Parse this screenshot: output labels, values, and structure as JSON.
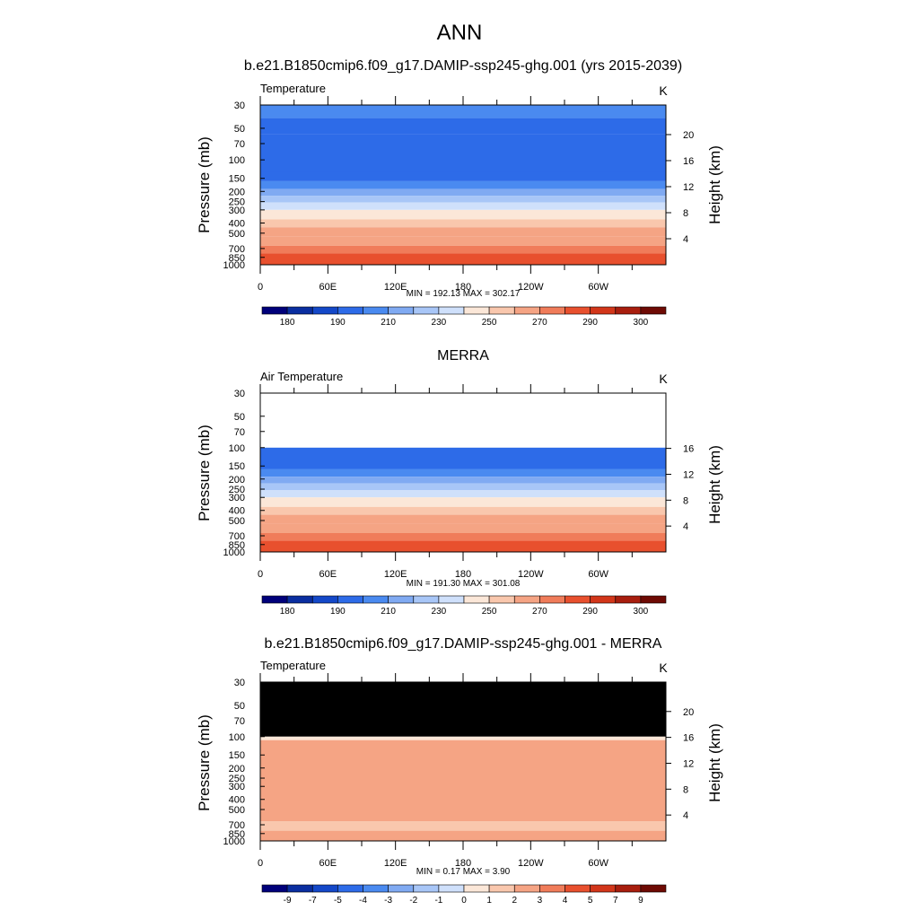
{
  "page_title": "ANN",
  "chart_data": [
    {
      "type": "heatmap",
      "title": "b.e21.B1850cmip6.f09_g17.DAMIP-ssp245-ghg.001 (yrs 2015-2039)",
      "left_label": "Temperature",
      "units": "K",
      "ylabel": "Pressure (mb)",
      "y2label": "Height (km)",
      "pressure_ticks": [
        "30",
        "50",
        "70",
        "100",
        "150",
        "200",
        "250",
        "300",
        "400",
        "500",
        "700",
        "850",
        "1000"
      ],
      "height_ticks": [
        "20",
        "16",
        "12",
        "8",
        "4"
      ],
      "x_ticks": [
        "0",
        "60E",
        "120E",
        "180",
        "120W",
        "60W"
      ],
      "minmax": "MIN = 192.13  MAX = 302.17",
      "colorbar_labels": [
        "180",
        "190",
        "210",
        "230",
        "250",
        "270",
        "290",
        "300"
      ],
      "bands": [
        {
          "top": 30,
          "bottom": 40,
          "value": 205
        },
        {
          "top": 40,
          "bottom": 57,
          "value": 200
        },
        {
          "top": 57,
          "bottom": 130,
          "value": 195
        },
        {
          "top": 130,
          "bottom": 160,
          "value": 200
        },
        {
          "top": 160,
          "bottom": 190,
          "value": 205
        },
        {
          "top": 190,
          "bottom": 220,
          "value": 215
        },
        {
          "top": 220,
          "bottom": 255,
          "value": 225
        },
        {
          "top": 255,
          "bottom": 300,
          "value": 235
        },
        {
          "top": 300,
          "bottom": 370,
          "value": 245
        },
        {
          "top": 370,
          "bottom": 440,
          "value": 255
        },
        {
          "top": 440,
          "bottom": 540,
          "value": 262
        },
        {
          "top": 540,
          "bottom": 660,
          "value": 268
        },
        {
          "top": 660,
          "bottom": 780,
          "value": 275
        },
        {
          "top": 780,
          "bottom": 880,
          "value": 282
        },
        {
          "top": 880,
          "bottom": 1000,
          "value": 288
        }
      ]
    },
    {
      "type": "heatmap",
      "title": "MERRA",
      "left_label": "Air Temperature",
      "units": "K",
      "ylabel": "Pressure (mb)",
      "y2label": "Height (km)",
      "pressure_ticks": [
        "30",
        "50",
        "70",
        "100",
        "150",
        "200",
        "250",
        "300",
        "400",
        "500",
        "700",
        "850",
        "1000"
      ],
      "height_ticks": [
        "16",
        "12",
        "8",
        "4"
      ],
      "x_ticks": [
        "0",
        "60E",
        "120E",
        "180",
        "120W",
        "60W"
      ],
      "minmax": "MIN = 191.30  MAX = 301.08",
      "colorbar_labels": [
        "180",
        "190",
        "210",
        "230",
        "250",
        "270",
        "290",
        "300"
      ],
      "bands": [
        {
          "top": 100,
          "bottom": 130,
          "value": 195
        },
        {
          "top": 130,
          "bottom": 160,
          "value": 200
        },
        {
          "top": 160,
          "bottom": 190,
          "value": 205
        },
        {
          "top": 190,
          "bottom": 220,
          "value": 215
        },
        {
          "top": 220,
          "bottom": 255,
          "value": 225
        },
        {
          "top": 255,
          "bottom": 300,
          "value": 235
        },
        {
          "top": 300,
          "bottom": 370,
          "value": 245
        },
        {
          "top": 370,
          "bottom": 440,
          "value": 255
        },
        {
          "top": 440,
          "bottom": 540,
          "value": 262
        },
        {
          "top": 540,
          "bottom": 660,
          "value": 268
        },
        {
          "top": 660,
          "bottom": 780,
          "value": 275
        },
        {
          "top": 780,
          "bottom": 880,
          "value": 282
        },
        {
          "top": 880,
          "bottom": 1000,
          "value": 288
        }
      ]
    },
    {
      "type": "heatmap",
      "title": "b.e21.B1850cmip6.f09_g17.DAMIP-ssp245-ghg.001 - MERRA",
      "left_label": "Temperature",
      "units": "K",
      "ylabel": "Pressure (mb)",
      "y2label": "Height (km)",
      "pressure_ticks": [
        "30",
        "50",
        "70",
        "100",
        "150",
        "200",
        "250",
        "300",
        "400",
        "500",
        "700",
        "850",
        "1000"
      ],
      "height_ticks": [
        "20",
        "16",
        "12",
        "8",
        "4"
      ],
      "x_ticks": [
        "0",
        "60E",
        "120E",
        "180",
        "120W",
        "60W"
      ],
      "minmax": "MIN =   0.17  MAX =   3.90",
      "colorbar_labels": [
        "-9",
        "-7",
        "-5",
        "-4",
        "-3",
        "-2",
        "-1",
        "0",
        "1",
        "2",
        "3",
        "4",
        "5",
        "7",
        "9"
      ],
      "bands": [
        {
          "top": 30,
          "bottom": 100,
          "value": null
        },
        {
          "top": 100,
          "bottom": 108,
          "value": 0.5
        },
        {
          "top": 108,
          "bottom": 650,
          "value": 2.5
        },
        {
          "top": 650,
          "bottom": 800,
          "value": 1.5
        },
        {
          "top": 800,
          "bottom": 1000,
          "value": 2.5
        }
      ]
    }
  ],
  "colorbar_colors": [
    "#00007a",
    "#0a2ea0",
    "#1448c8",
    "#2d6be8",
    "#4a8af0",
    "#80aaf2",
    "#a8c6f7",
    "#cfe0fb",
    "#fbe7d8",
    "#f9c7ad",
    "#f5a484",
    "#f07c5a",
    "#e8502e",
    "#d2361a",
    "#a81e0e",
    "#6e0a04"
  ]
}
